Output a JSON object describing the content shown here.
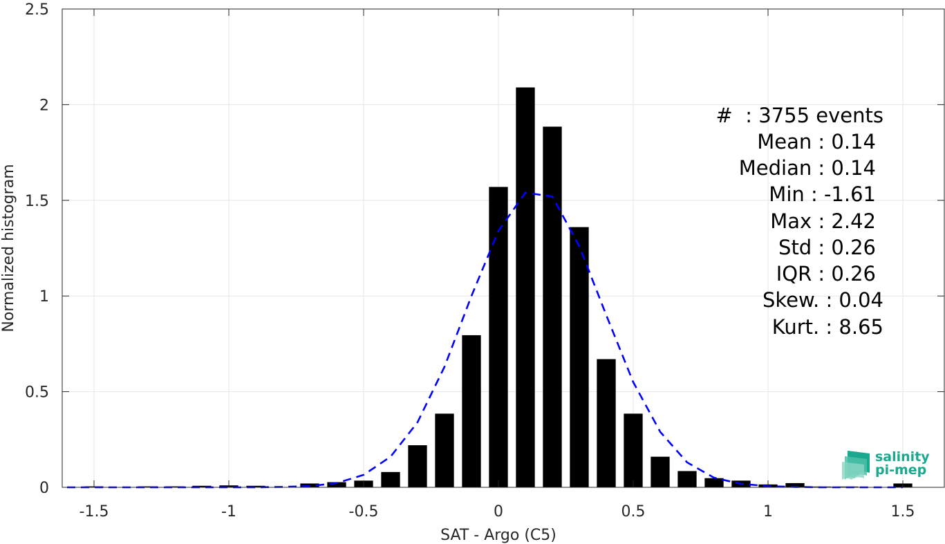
{
  "chart_data": {
    "type": "bar",
    "xlabel": "SAT - Argo (C5)",
    "ylabel": "Normalized histogram",
    "xlim": [
      -1.6,
      1.6
    ],
    "ylim": [
      0,
      2.5
    ],
    "grid": true,
    "x_ticks": [
      {
        "value": -1.5,
        "label": "-1.5"
      },
      {
        "value": -1,
        "label": "-1"
      },
      {
        "value": -0.5,
        "label": "-0.5"
      },
      {
        "value": 0,
        "label": "0"
      },
      {
        "value": 0.5,
        "label": "0.5"
      },
      {
        "value": 1,
        "label": "1"
      },
      {
        "value": 1.5,
        "label": "1.5"
      }
    ],
    "y_ticks": [
      {
        "value": 0,
        "label": "0"
      },
      {
        "value": 0.5,
        "label": "0.5"
      },
      {
        "value": 1,
        "label": "1"
      },
      {
        "value": 1.5,
        "label": "1.5"
      },
      {
        "value": 2,
        "label": "2"
      },
      {
        "value": 2.5,
        "label": "2.5"
      }
    ],
    "bar_color": "#000000",
    "curve_color": "#0000ff",
    "bins": {
      "x": [
        -1.5,
        -1.4,
        -1.3,
        -1.2,
        -1.1,
        -1.0,
        -0.9,
        -0.8,
        -0.7,
        -0.6,
        -0.5,
        -0.4,
        -0.3,
        -0.2,
        -0.1,
        0.0,
        0.1,
        0.2,
        0.3,
        0.4,
        0.5,
        0.6,
        0.7,
        0.8,
        0.9,
        1.0,
        1.1,
        1.2,
        1.3,
        1.4,
        1.5
      ],
      "values": [
        0.005,
        0.0,
        0.005,
        0.005,
        0.008,
        0.01,
        0.008,
        0.0,
        0.02,
        0.027,
        0.035,
        0.08,
        0.22,
        0.385,
        0.795,
        1.57,
        2.09,
        1.885,
        1.36,
        0.67,
        0.385,
        0.16,
        0.085,
        0.048,
        0.035,
        0.015,
        0.022,
        0.004,
        0.004,
        0.0,
        0.02
      ]
    },
    "fit_curve": {
      "style": "dashed",
      "x": [
        -1.6,
        -1.5,
        -1.4,
        -1.3,
        -1.2,
        -1.1,
        -1.0,
        -0.9,
        -0.8,
        -0.7,
        -0.6,
        -0.5,
        -0.4,
        -0.3,
        -0.2,
        -0.1,
        0.0,
        0.1,
        0.2,
        0.3,
        0.4,
        0.5,
        0.6,
        0.7,
        0.8,
        0.9,
        1.0,
        1.1,
        1.2,
        1.3,
        1.4,
        1.5
      ],
      "y": [
        0.0,
        0.0,
        0.0,
        0.0,
        0.0,
        0.0,
        0.0,
        0.0,
        0.002,
        0.006,
        0.022,
        0.065,
        0.16,
        0.34,
        0.63,
        1.0,
        1.34,
        1.54,
        1.52,
        1.26,
        0.9,
        0.55,
        0.29,
        0.13,
        0.05,
        0.018,
        0.006,
        0.002,
        0.0,
        0.0,
        0.0,
        0.0
      ]
    }
  },
  "stats": {
    "events": "#  : 3755 events",
    "mean": "Mean : 0.14",
    "median": "Median : 0.14",
    "min": "Min : -1.61",
    "max": "Max : 2.42",
    "std": "Std : 0.26",
    "iqr": "IQR : 0.26",
    "skew": "Skew. : 0.04",
    "kurt": "Kurt. : 8.65"
  },
  "logo": {
    "line1": "salinity",
    "line2": "pi-mep",
    "color": "#1aa88e"
  }
}
